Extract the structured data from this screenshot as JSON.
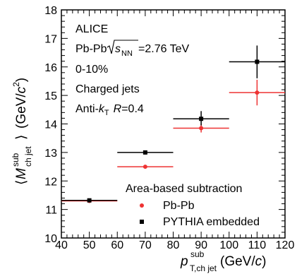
{
  "chart_data": {
    "type": "scatter",
    "x_range": [
      40,
      120
    ],
    "y_range": [
      10,
      18
    ],
    "x_ticks": [
      40,
      50,
      60,
      70,
      80,
      90,
      100,
      110,
      120
    ],
    "y_ticks": [
      10,
      11,
      12,
      13,
      14,
      15,
      16,
      17,
      18
    ],
    "x_tick_labels": [
      "40",
      "50",
      "60",
      "70",
      "80",
      "90",
      "100",
      "110",
      "120"
    ],
    "y_tick_labels": [
      "10",
      "11",
      "12",
      "13",
      "14",
      "15",
      "16",
      "17",
      "18"
    ],
    "grid": false,
    "series": [
      {
        "name": "Pb-Pb",
        "color": "#ee3333",
        "marker": "circle",
        "points": [
          {
            "x": 50,
            "xlo": 40,
            "xhi": 60,
            "y": 11.3,
            "ylo": 11.25,
            "yhi": 11.35
          },
          {
            "x": 70,
            "xlo": 60,
            "xhi": 80,
            "y": 12.5,
            "ylo": 12.45,
            "yhi": 12.55
          },
          {
            "x": 90,
            "xlo": 80,
            "xhi": 100,
            "y": 13.85,
            "ylo": 13.7,
            "yhi": 14.0
          },
          {
            "x": 110,
            "xlo": 100,
            "xhi": 120,
            "y": 15.1,
            "ylo": 14.65,
            "yhi": 15.55
          }
        ]
      },
      {
        "name": "PYTHIA embedded",
        "color": "#000000",
        "marker": "square",
        "points": [
          {
            "x": 50,
            "xlo": 40,
            "xhi": 60,
            "y": 11.32,
            "ylo": 11.28,
            "yhi": 11.36
          },
          {
            "x": 70,
            "xlo": 60,
            "xhi": 80,
            "y": 13.0,
            "ylo": 12.93,
            "yhi": 13.07
          },
          {
            "x": 90,
            "xlo": 80,
            "xhi": 100,
            "y": 14.18,
            "ylo": 13.95,
            "yhi": 14.45
          },
          {
            "x": 110,
            "xlo": 100,
            "xhi": 120,
            "y": 16.18,
            "ylo": 15.6,
            "yhi": 16.75
          }
        ]
      }
    ]
  },
  "annotations": {
    "line1": "ALICE",
    "line2_prefix": "Pb-Pb",
    "line2_sqrt_s": "s",
    "line2_sqrt_sub": "NN",
    "line2_value": "=2.76 TeV",
    "line3": "0-10%",
    "line4": "Charged jets",
    "line5_prefix": "Anti-",
    "line5_k": "k",
    "line5_k_sub": "T",
    "line5_R": "R",
    "line5_value": "=0.4"
  },
  "legend": {
    "header": "Area-based subtraction",
    "entries": [
      "Pb-Pb",
      "PYTHIA embedded"
    ]
  },
  "axes": {
    "x_main": "p",
    "x_sup": "sub",
    "x_sub": "T,ch jet",
    "x_unit_open": "(GeV/",
    "x_unit_c": "c",
    "x_unit_close": ")",
    "y_open": "⟨",
    "y_M": "M",
    "y_sup": "sub",
    "y_sub": "ch jet",
    "y_close": "⟩",
    "y_unit_open": "(GeV/",
    "y_unit_c": "c",
    "y_unit_sup": "2",
    "y_unit_close": ")"
  }
}
